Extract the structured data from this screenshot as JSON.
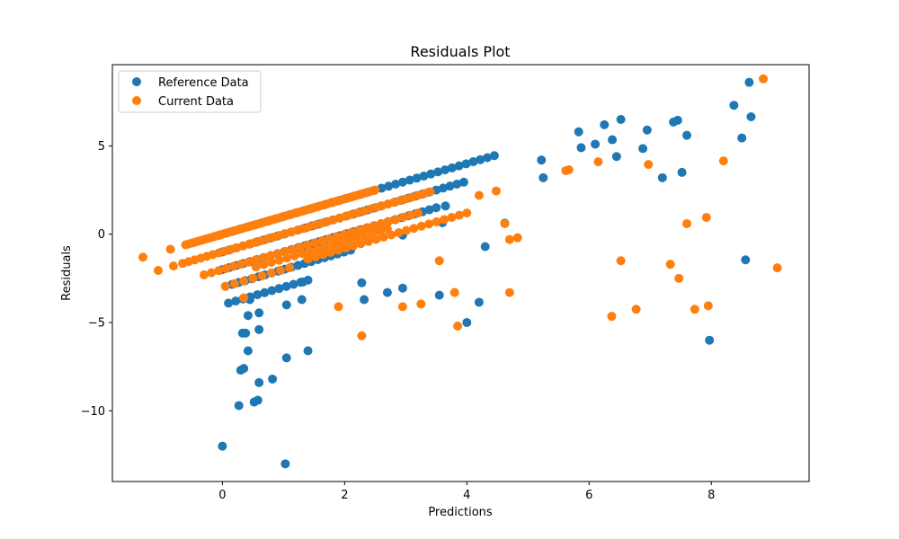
{
  "chart_data": {
    "type": "scatter",
    "title": "Residuals Plot",
    "xlabel": "Predictions",
    "ylabel": "Residuals",
    "xlim": [
      -1.8,
      9.6
    ],
    "ylim": [
      -14.0,
      9.6
    ],
    "xticks": [
      0,
      2,
      4,
      6,
      8
    ],
    "yticks": [
      -10,
      -5,
      0,
      5
    ],
    "xtick_labels": [
      "0",
      "2",
      "4",
      "6",
      "8"
    ],
    "ytick_labels": [
      "−10",
      "−5",
      "0",
      "5"
    ],
    "grid": false,
    "legend_position": "top-left",
    "series": [
      {
        "name": "Reference Data",
        "color": "#1f77b4",
        "lines": [
          {
            "x_start": -0.05,
            "x_end": 4.45,
            "y_start": -0.05,
            "count": 40
          },
          {
            "x_start": 0.0,
            "x_end": 3.95,
            "y_start": -1.0,
            "count": 36
          },
          {
            "x_start": 0.0,
            "x_end": 3.5,
            "y_start": -2.0,
            "count": 32
          },
          {
            "x_start": 0.05,
            "x_end": 2.1,
            "y_start": -2.95,
            "count": 20
          },
          {
            "x_start": 0.1,
            "x_end": 1.4,
            "y_start": -3.9,
            "count": 12
          }
        ],
        "points": [
          {
            "x": 4.62,
            "y": 0.63
          },
          {
            "x": 5.22,
            "y": 4.2
          },
          {
            "x": 5.25,
            "y": 3.2
          },
          {
            "x": 5.83,
            "y": 5.8
          },
          {
            "x": 5.87,
            "y": 4.9
          },
          {
            "x": 6.1,
            "y": 5.1
          },
          {
            "x": 6.25,
            "y": 6.2
          },
          {
            "x": 6.38,
            "y": 5.35
          },
          {
            "x": 6.45,
            "y": 4.4
          },
          {
            "x": 6.52,
            "y": 6.5
          },
          {
            "x": 6.88,
            "y": 4.85
          },
          {
            "x": 6.95,
            "y": 5.9
          },
          {
            "x": 7.2,
            "y": 3.2
          },
          {
            "x": 7.38,
            "y": 6.35
          },
          {
            "x": 7.45,
            "y": 6.45
          },
          {
            "x": 7.52,
            "y": 3.5
          },
          {
            "x": 7.6,
            "y": 5.6
          },
          {
            "x": 8.37,
            "y": 7.3
          },
          {
            "x": 8.5,
            "y": 5.45
          },
          {
            "x": 8.62,
            "y": 8.6
          },
          {
            "x": 8.65,
            "y": 6.65
          },
          {
            "x": 8.56,
            "y": -1.45
          },
          {
            "x": 7.97,
            "y": -6.0
          },
          {
            "x": 4.3,
            "y": -0.7
          },
          {
            "x": 4.2,
            "y": -3.85
          },
          {
            "x": 4.0,
            "y": -5.0
          },
          {
            "x": 3.55,
            "y": -3.45
          },
          {
            "x": 3.65,
            "y": 1.6
          },
          {
            "x": 3.6,
            "y": 0.65
          },
          {
            "x": 2.95,
            "y": -0.05
          },
          {
            "x": 2.95,
            "y": -3.05
          },
          {
            "x": 2.7,
            "y": -3.3
          },
          {
            "x": 2.32,
            "y": -3.7
          },
          {
            "x": 2.28,
            "y": -2.75
          },
          {
            "x": 1.32,
            "y": -2.7
          },
          {
            "x": 1.3,
            "y": -3.7
          },
          {
            "x": 1.4,
            "y": -6.6
          },
          {
            "x": 1.05,
            "y": -4.0
          },
          {
            "x": 1.05,
            "y": -7.0
          },
          {
            "x": 0.82,
            "y": -8.2
          },
          {
            "x": 0.6,
            "y": -4.45
          },
          {
            "x": 0.6,
            "y": -5.4
          },
          {
            "x": 0.6,
            "y": -8.4
          },
          {
            "x": 0.58,
            "y": -9.4
          },
          {
            "x": 0.52,
            "y": -9.5
          },
          {
            "x": 0.45,
            "y": -3.7
          },
          {
            "x": 0.42,
            "y": -4.6
          },
          {
            "x": 0.42,
            "y": -6.6
          },
          {
            "x": 0.38,
            "y": -5.6
          },
          {
            "x": 0.33,
            "y": -5.6
          },
          {
            "x": 0.35,
            "y": -7.6
          },
          {
            "x": 0.3,
            "y": -7.7
          },
          {
            "x": 0.27,
            "y": -9.7
          },
          {
            "x": 0.0,
            "y": -12.0
          },
          {
            "x": 1.03,
            "y": -13.0
          }
        ]
      },
      {
        "name": "Current Data",
        "color": "#ff7f0e",
        "lines": [
          {
            "x_start": -0.6,
            "x_end": 2.5,
            "y_start": -0.6,
            "count": 60
          },
          {
            "x_start": -0.65,
            "x_end": 3.4,
            "y_start": -1.65,
            "count": 42
          },
          {
            "x_start": -0.3,
            "x_end": 3.2,
            "y_start": -2.3,
            "count": 30
          },
          {
            "x_start": 0.55,
            "x_end": 2.7,
            "y_start": -1.85,
            "count": 18
          },
          {
            "x_start": 1.4,
            "x_end": 4.0,
            "y_start": -1.4,
            "count": 22
          },
          {
            "x_start": 0.05,
            "x_end": 1.1,
            "y_start": -2.95,
            "count": 8
          }
        ],
        "points": [
          {
            "x": -1.3,
            "y": -1.3
          },
          {
            "x": -1.05,
            "y": -2.05
          },
          {
            "x": -0.85,
            "y": -0.85
          },
          {
            "x": -0.8,
            "y": -1.8
          },
          {
            "x": 0.35,
            "y": -3.6
          },
          {
            "x": 1.9,
            "y": -4.1
          },
          {
            "x": 2.28,
            "y": -5.75
          },
          {
            "x": 2.95,
            "y": -4.1
          },
          {
            "x": 3.25,
            "y": -3.95
          },
          {
            "x": 3.55,
            "y": -1.5
          },
          {
            "x": 3.8,
            "y": -3.3
          },
          {
            "x": 3.85,
            "y": -5.2
          },
          {
            "x": 4.2,
            "y": 2.2
          },
          {
            "x": 4.48,
            "y": 2.45
          },
          {
            "x": 4.62,
            "y": 0.6
          },
          {
            "x": 4.7,
            "y": -0.3
          },
          {
            "x": 4.7,
            "y": -3.3
          },
          {
            "x": 4.83,
            "y": -0.2
          },
          {
            "x": 5.62,
            "y": 3.6
          },
          {
            "x": 5.67,
            "y": 3.65
          },
          {
            "x": 6.15,
            "y": 4.1
          },
          {
            "x": 6.37,
            "y": -4.65
          },
          {
            "x": 6.52,
            "y": -1.5
          },
          {
            "x": 6.77,
            "y": -4.25
          },
          {
            "x": 6.97,
            "y": 3.95
          },
          {
            "x": 7.33,
            "y": -1.7
          },
          {
            "x": 7.47,
            "y": -2.5
          },
          {
            "x": 7.6,
            "y": 0.6
          },
          {
            "x": 7.73,
            "y": -4.25
          },
          {
            "x": 7.92,
            "y": 0.95
          },
          {
            "x": 7.95,
            "y": -4.05
          },
          {
            "x": 8.2,
            "y": 4.15
          },
          {
            "x": 8.85,
            "y": 8.8
          },
          {
            "x": 9.08,
            "y": -1.9
          }
        ]
      }
    ]
  }
}
